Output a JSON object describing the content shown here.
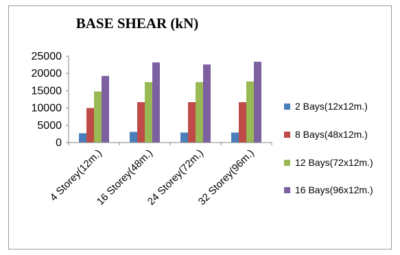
{
  "chart_data": {
    "type": "bar",
    "title": "BASE SHEAR  (kN)",
    "xlabel": "",
    "ylabel": "",
    "categories": [
      "4  Storey(12m.)",
      "16 Storey(48m.)",
      "24 Storey(72m.)",
      "32 Storey(96m.)"
    ],
    "ylim": [
      0,
      25000
    ],
    "yticks": [
      0,
      5000,
      10000,
      15000,
      20000,
      25000
    ],
    "grid": false,
    "legend_position": "right",
    "series": [
      {
        "name": "2 Bays(12x12m.)",
        "color": "#4a7ebb",
        "values": [
          2700,
          3100,
          2900,
          2900
        ]
      },
      {
        "name": "8 Bays(48x12m.)",
        "color": "#be4b48",
        "values": [
          10000,
          11700,
          11700,
          11700
        ]
      },
      {
        "name": "12 Bays(72x12m.)",
        "color": "#98b954",
        "values": [
          14800,
          17500,
          17500,
          17700
        ]
      },
      {
        "name": "16 Bays(96x12m.)",
        "color": "#7d60a0",
        "values": [
          19300,
          23200,
          22600,
          23400
        ]
      }
    ]
  }
}
